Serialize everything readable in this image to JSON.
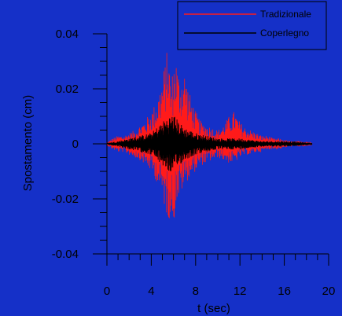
{
  "chart_data": {
    "type": "line",
    "title": "",
    "xlabel": "t (sec)",
    "ylabel": "Spostamento  (cm)",
    "xlim": [
      0,
      20
    ],
    "ylim": [
      -0.04,
      0.04
    ],
    "x_ticks": [
      "0",
      "4",
      "8",
      "12",
      "16",
      "20"
    ],
    "y_ticks": [
      "-0.04",
      "-0.02",
      "0",
      "0.02",
      "0.04"
    ],
    "legend_position": "top-right",
    "grid": false,
    "series": [
      {
        "name": "Tradizionale",
        "color": "#ff1a1a",
        "t": [
          0.0,
          0.5,
          1.0,
          1.5,
          2.0,
          2.5,
          3.0,
          3.5,
          4.0,
          4.5,
          5.0,
          5.5,
          5.8,
          6.0,
          6.2,
          6.5,
          7.0,
          7.5,
          8.0,
          8.5,
          9.0,
          9.5,
          10.0,
          10.5,
          11.0,
          11.5,
          12.0,
          12.5,
          13.0,
          13.5,
          14.0,
          14.5,
          15.0,
          15.5,
          16.0,
          16.5,
          17.0,
          17.5,
          18.0,
          18.5
        ],
        "upper": [
          0.0005,
          0.002,
          0.003,
          0.003,
          0.004,
          0.005,
          0.007,
          0.009,
          0.012,
          0.016,
          0.024,
          0.036,
          0.022,
          0.03,
          0.033,
          0.025,
          0.027,
          0.018,
          0.012,
          0.008,
          0.007,
          0.006,
          0.005,
          0.007,
          0.01,
          0.012,
          0.008,
          0.006,
          0.005,
          0.004,
          0.003,
          0.003,
          0.002,
          0.002,
          0.0015,
          0.001,
          0.001,
          0.001,
          0.001,
          0.0005
        ],
        "lower": [
          -0.0005,
          -0.002,
          -0.003,
          -0.003,
          -0.004,
          -0.005,
          -0.006,
          -0.008,
          -0.01,
          -0.014,
          -0.02,
          -0.028,
          -0.026,
          -0.031,
          -0.022,
          -0.02,
          -0.015,
          -0.012,
          -0.01,
          -0.008,
          -0.007,
          -0.006,
          -0.005,
          -0.006,
          -0.007,
          -0.007,
          -0.005,
          -0.004,
          -0.004,
          -0.003,
          -0.003,
          -0.002,
          -0.002,
          -0.002,
          -0.0015,
          -0.001,
          -0.001,
          -0.001,
          -0.001,
          -0.0005
        ]
      },
      {
        "name": "Coperlegno",
        "color": "#000000",
        "t": [
          0.0,
          1.0,
          2.0,
          3.0,
          4.0,
          4.5,
          5.0,
          5.5,
          6.0,
          6.5,
          7.0,
          8.0,
          9.0,
          10.0,
          11.0,
          12.0,
          13.0,
          14.0,
          15.0,
          16.0,
          17.0,
          18.0,
          18.5
        ],
        "upper": [
          0.0003,
          0.001,
          0.002,
          0.003,
          0.004,
          0.006,
          0.008,
          0.01,
          0.011,
          0.008,
          0.006,
          0.004,
          0.003,
          0.002,
          0.002,
          0.002,
          0.0015,
          0.001,
          0.001,
          0.001,
          0.0008,
          0.0005,
          0.0003
        ],
        "lower": [
          -0.0003,
          -0.001,
          -0.002,
          -0.003,
          -0.004,
          -0.006,
          -0.008,
          -0.01,
          -0.011,
          -0.008,
          -0.006,
          -0.004,
          -0.003,
          -0.002,
          -0.002,
          -0.002,
          -0.0015,
          -0.001,
          -0.001,
          -0.001,
          -0.0008,
          -0.0005,
          -0.0003
        ]
      }
    ]
  }
}
